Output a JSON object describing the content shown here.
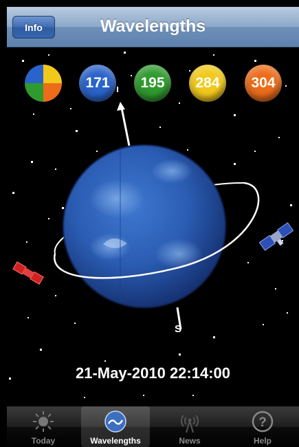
{
  "navbar": {
    "title": "Wavelengths",
    "info_label": "Info"
  },
  "wavelengths": {
    "buttons": [
      {
        "label": "171",
        "color": "#2a63c9"
      },
      {
        "label": "195",
        "color": "#2f9a2e"
      },
      {
        "label": "284",
        "color": "#f2c91b"
      },
      {
        "label": "304",
        "color": "#ec6c1a"
      }
    ],
    "composite_colors": [
      "#f2c91b",
      "#ec6c1a",
      "#2f9a2e",
      "#2a63c9"
    ]
  },
  "scene": {
    "pole_label": "S",
    "datetime": "21-May-2010 22:14:00"
  },
  "tabbar": {
    "tabs": [
      {
        "label": "Today",
        "icon": "sun-icon"
      },
      {
        "label": "Wavelengths",
        "icon": "sun-wavelength-icon"
      },
      {
        "label": "News",
        "icon": "antenna-icon"
      },
      {
        "label": "Help",
        "icon": "help-icon"
      }
    ],
    "selected": "Wavelengths"
  }
}
